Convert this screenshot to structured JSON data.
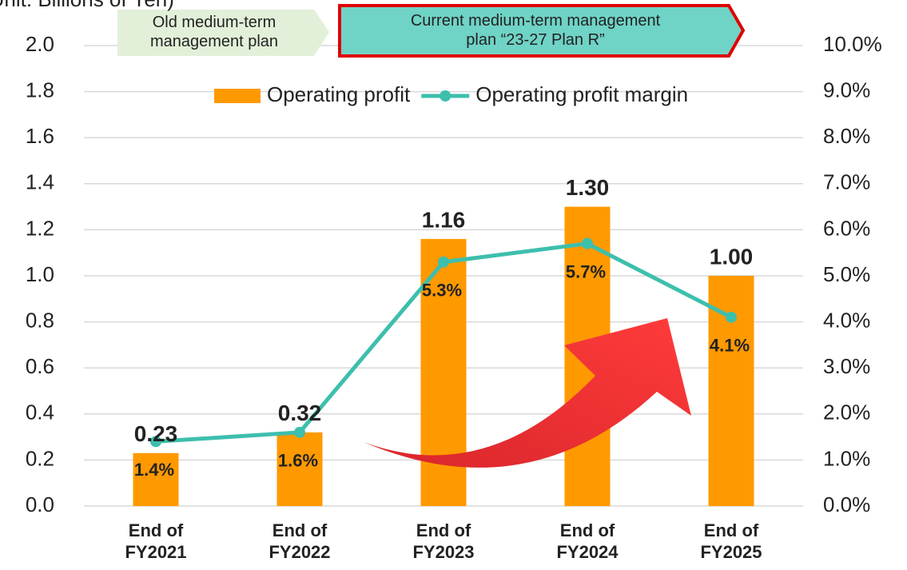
{
  "chart_data": {
    "type": "bar_line",
    "ylabel": "(Unit: Billions of Yen)",
    "annotations": [
      {
        "text": "Old medium-term management plan",
        "color": "#e2f0d9"
      },
      {
        "text": "Current medium-term management plan “23-27 Plan R”",
        "color": "#6fd3c6",
        "border": "#e00000"
      }
    ],
    "categories": [
      "End of FY2021",
      "End of FY2022",
      "End of FY2023",
      "End of FY2024",
      "End of FY2025"
    ],
    "series": [
      {
        "name": "Operating profit",
        "type": "bar",
        "color": "#ff9900",
        "values": [
          0.23,
          0.32,
          1.16,
          1.3,
          1.0
        ],
        "value_labels": [
          "0.23",
          "0.32",
          "1.16",
          "1.30",
          "1.00"
        ]
      },
      {
        "name": "Operating profit margin",
        "type": "line",
        "axis": "y2",
        "color": "#3dbfad",
        "values": [
          1.4,
          1.6,
          5.3,
          5.7,
          4.1
        ],
        "value_labels": [
          "1.4%",
          "1.6%",
          "5.3%",
          "5.7%",
          "4.1%"
        ]
      }
    ],
    "ylim": [
      0,
      2
    ],
    "yticks": [
      {
        "value": 0,
        "label": "0.0"
      },
      0.2,
      0.4,
      0.6,
      0.8,
      {
        "value": 1,
        "label": "1.0"
      },
      1.2,
      1.4,
      1.6,
      1.8,
      {
        "value": 2,
        "label": "2.0"
      }
    ],
    "y2lim": [
      0,
      10
    ],
    "y2ticks": [
      {
        "value": 0,
        "label": "0.0%"
      },
      {
        "value": 1,
        "label": "1.0%"
      },
      {
        "value": 2,
        "label": "2.0%"
      },
      {
        "value": 3,
        "label": "3.0%"
      },
      {
        "value": 4,
        "label": "4.0%"
      },
      {
        "value": 5,
        "label": "5.0%"
      },
      {
        "value": 6,
        "label": "6.0%"
      },
      {
        "value": 7,
        "label": "7.0%"
      },
      {
        "value": 8,
        "label": "8.0%"
      },
      {
        "value": 9,
        "label": "9.0%"
      },
      {
        "value": 10,
        "label": "10.0%"
      }
    ],
    "grid": true,
    "legend": "top"
  }
}
